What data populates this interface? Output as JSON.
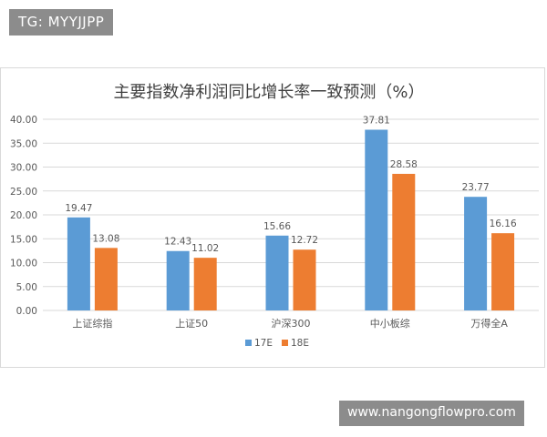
{
  "watermark": {
    "top_left": "TG: MYYJJPP",
    "bottom_right": "www.nangongflowpro.com"
  },
  "colors": {
    "series_17E": "#5b9bd5",
    "series_18E": "#ed7d31",
    "grid": "#d9d9d9",
    "text": "#595959",
    "title": "#404040"
  },
  "chart_data": {
    "type": "bar",
    "title": "主要指数净利润同比增长率一致预测（%）",
    "categories": [
      "上证综指",
      "上证50",
      "沪深300",
      "中小板综",
      "万得全A"
    ],
    "series": [
      {
        "name": "17E",
        "values": [
          19.47,
          12.43,
          15.66,
          37.81,
          23.77
        ],
        "labels": [
          "19.47",
          "12.43",
          "15.66",
          "37.81",
          "23.77"
        ]
      },
      {
        "name": "18E",
        "values": [
          13.08,
          11.02,
          12.72,
          28.58,
          16.16
        ],
        "labels": [
          "13.08",
          "11.02",
          "12.72",
          "28.58",
          "16.16"
        ]
      }
    ],
    "yticks": [
      "0.00",
      "5.00",
      "10.00",
      "15.00",
      "20.00",
      "25.00",
      "30.00",
      "35.00",
      "40.00"
    ],
    "ylim": [
      0,
      40
    ],
    "grid": true,
    "legend": "bottom"
  }
}
